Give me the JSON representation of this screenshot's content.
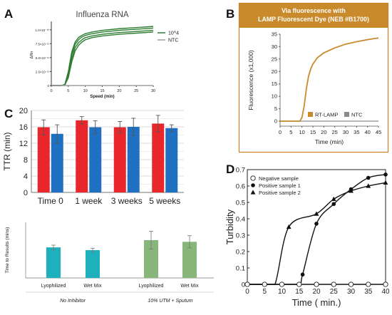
{
  "panels": {
    "A": "A",
    "B": "B",
    "C": "C",
    "D": "D"
  },
  "chart_data": [
    {
      "id": "A",
      "type": "line",
      "title": "Influenza RNA",
      "xlabel": "Speed (min)",
      "ylabel": "ΔRn",
      "xlim": [
        0,
        30
      ],
      "ylim": [
        0,
        1.1e-10
      ],
      "xticks": [
        0,
        5,
        10,
        15,
        20,
        25,
        30
      ],
      "yticks": [
        0,
        2.5e-11,
        5e-11,
        7.5e-11,
        1e-10
      ],
      "ytick_labels": [
        "0",
        "2.5×10⁻¹¹",
        "5.0×10⁻¹¹",
        "7.5×10⁻¹¹",
        "1.0×10⁻¹⁰"
      ],
      "grid": false,
      "legend": {
        "position": "right",
        "entries": [
          {
            "label": "10^4",
            "color": "#2e7d32"
          },
          {
            "label": "NTC",
            "color": "#9e9e9e"
          }
        ]
      },
      "series": [
        {
          "name": "10^4",
          "color": "#2e7d32",
          "x": [
            0,
            3,
            4,
            5,
            6,
            7,
            8,
            9,
            10,
            12,
            15,
            20,
            25,
            30
          ],
          "y": [
            0,
            0,
            2e-12,
            2.5e-11,
            6e-11,
            7.8e-11,
            8.6e-11,
            9e-11,
            9.3e-11,
            9.6e-11,
            9.9e-11,
            1.02e-10,
            1.04e-10,
            1.06e-10
          ]
        },
        {
          "name": "10^4",
          "color": "#2e7d32",
          "x": [
            0,
            3,
            4,
            5,
            6,
            7,
            8,
            9,
            10,
            12,
            15,
            20,
            25,
            30
          ],
          "y": [
            0,
            0,
            2e-12,
            2.2e-11,
            5.5e-11,
            7.4e-11,
            8.2e-11,
            8.7e-11,
            9e-11,
            9.3e-11,
            9.6e-11,
            9.9e-11,
            1.01e-10,
            1.03e-10
          ]
        },
        {
          "name": "10^4",
          "color": "#2e7d32",
          "x": [
            0,
            3,
            4,
            5,
            6,
            7,
            8,
            9,
            10,
            12,
            15,
            20,
            25,
            30
          ],
          "y": [
            0,
            0,
            1e-12,
            1.8e-11,
            4.8e-11,
            6.8e-11,
            7.7e-11,
            8.2e-11,
            8.6e-11,
            8.9e-11,
            9.2e-11,
            9.5e-11,
            9.7e-11,
            9.9e-11
          ]
        },
        {
          "name": "10^4",
          "color": "#2e7d32",
          "x": [
            0,
            3,
            4,
            5,
            6,
            7,
            8,
            9,
            10,
            12,
            15,
            20,
            25,
            30
          ],
          "y": [
            0,
            0,
            1e-12,
            1.4e-11,
            4.2e-11,
            6.2e-11,
            7.2e-11,
            7.8e-11,
            8.2e-11,
            8.6e-11,
            8.9e-11,
            9.2e-11,
            9.4e-11,
            9.6e-11
          ]
        },
        {
          "name": "NTC",
          "color": "#9e9e9e",
          "x": [
            0,
            30
          ],
          "y": [
            0,
            0
          ]
        }
      ]
    },
    {
      "id": "B",
      "type": "line",
      "header": "Via fluorescence with\nLAMP Fluorescent Dye (NEB #B1700)",
      "xlabel": "Time (min)",
      "ylabel": "Fluorescence (x1,000)",
      "xlim": [
        0,
        45
      ],
      "ylim": [
        -2,
        35
      ],
      "xticks": [
        0,
        5,
        10,
        15,
        20,
        25,
        30,
        35,
        40,
        45
      ],
      "yticks": [
        0,
        5,
        10,
        15,
        20,
        25,
        30,
        35
      ],
      "grid": false,
      "legend": {
        "position": "bottom-right",
        "entries": [
          {
            "label": "RT-LAMP",
            "color": "#c98a2b"
          },
          {
            "label": "NTC",
            "color": "#8a8a8a"
          }
        ]
      },
      "series": [
        {
          "name": "RT-LAMP",
          "color": "#c98a2b",
          "x": [
            0,
            9,
            10,
            11,
            12,
            13,
            14,
            15,
            17,
            20,
            25,
            30,
            35,
            40,
            45
          ],
          "y": [
            0,
            0,
            1.5,
            6,
            13,
            18,
            21,
            23,
            25.5,
            27.5,
            29.5,
            31,
            32,
            32.8,
            33.5
          ]
        },
        {
          "name": "NTC",
          "color": "#8a8a8a",
          "x": [
            0,
            45
          ],
          "y": [
            0,
            0
          ]
        }
      ]
    },
    {
      "id": "C-top",
      "type": "bar",
      "ylabel": "TTR (min)",
      "categories": [
        "Time 0",
        "1 week",
        "3 weeks",
        "5 weeks"
      ],
      "ylim": [
        0,
        20
      ],
      "yticks": [
        0,
        2,
        4,
        6,
        8,
        10,
        12,
        14,
        16,
        18,
        20
      ],
      "grid": true,
      "series": [
        {
          "color": "#e8262b",
          "values": [
            15.9,
            17.6,
            15.9,
            16.8
          ],
          "errors": [
            1.8,
            0.9,
            1.4,
            2.0
          ]
        },
        {
          "color": "#1f70c1",
          "values": [
            14.3,
            15.9,
            16.0,
            15.7
          ],
          "errors": [
            2.2,
            1.6,
            2.1,
            0.8
          ]
        }
      ]
    },
    {
      "id": "C-bottom",
      "type": "bar",
      "ylabel": "Time to Results (mins)",
      "categories": [
        "Lyophilized",
        "Wet Mix",
        "Lyophilized",
        "Wet Mix"
      ],
      "groups": [
        "No Inhibitor",
        "10% UTM + Sputum"
      ],
      "ylim": [
        0,
        20
      ],
      "grid": false,
      "values": [
        11.0,
        10.0,
        13.6,
        13.0
      ],
      "errors": [
        0.8,
        0.7,
        3.2,
        2.2
      ],
      "colors": [
        "#1fb0bd",
        "#1fb0bd",
        "#87b57a",
        "#87b57a"
      ]
    },
    {
      "id": "D",
      "type": "line",
      "xlabel": "Time ( min.)",
      "ylabel": "Turbidity",
      "xlim": [
        0,
        40
      ],
      "ylim": [
        0,
        0.7
      ],
      "xticks": [
        0,
        5,
        10,
        15,
        20,
        25,
        30,
        35,
        40
      ],
      "yticks": [
        0,
        0.1,
        0.2,
        0.3,
        0.4,
        0.5,
        0.6,
        0.7
      ],
      "grid": false,
      "legend": {
        "position": "top-left",
        "entries": [
          {
            "label": "Negative sample",
            "marker": "open-circle"
          },
          {
            "label": "Positive sample 1",
            "marker": "filled-circle"
          },
          {
            "label": "Positive sample 2",
            "marker": "triangle"
          }
        ]
      },
      "series": [
        {
          "name": "Negative sample",
          "marker": "open-circle",
          "x": [
            0,
            5,
            10,
            15,
            20,
            25,
            30,
            35,
            40
          ],
          "y": [
            0,
            0,
            0,
            0,
            0,
            0,
            0,
            0,
            0
          ]
        },
        {
          "name": "Positive sample 1",
          "marker": "filled-circle",
          "x": [
            0,
            5,
            10,
            15,
            16,
            20,
            25,
            30,
            35,
            40
          ],
          "y": [
            0,
            0,
            0,
            0,
            0.06,
            0.37,
            0.49,
            0.58,
            0.65,
            0.67
          ]
        },
        {
          "name": "Positive sample 2",
          "marker": "triangle",
          "x": [
            0,
            5,
            8,
            12,
            20,
            25,
            30,
            35,
            40
          ],
          "y": [
            0,
            0,
            0,
            0.35,
            0.43,
            0.52,
            0.57,
            0.6,
            0.62
          ]
        }
      ]
    }
  ]
}
